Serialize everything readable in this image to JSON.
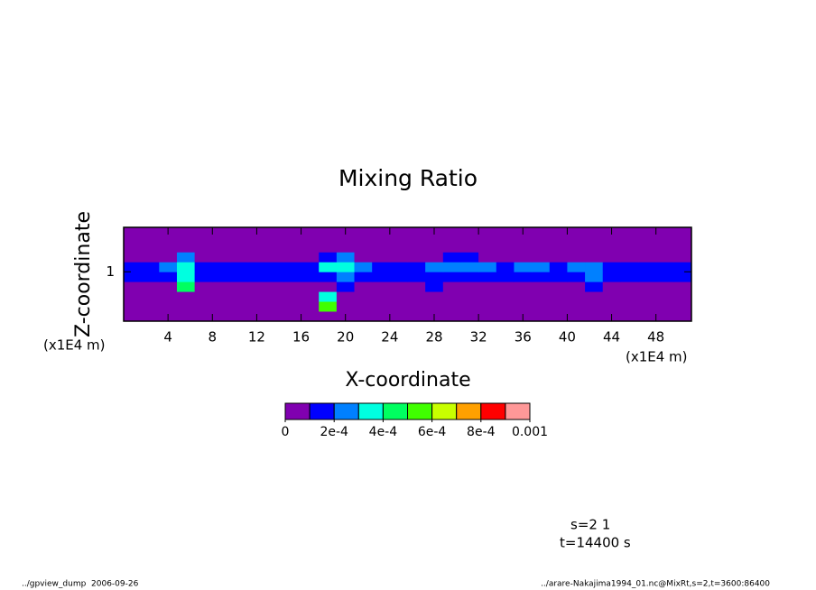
{
  "chart_data": {
    "type": "contour",
    "title": "Mixing Ratio",
    "x_label": "X-coordinate",
    "y_label": "Z-coordinate",
    "x_units": "(x1E4 m)",
    "y_units": "(x1E4 m)",
    "xlim": [
      0,
      51.2
    ],
    "ylim": [
      0,
      1.9
    ],
    "xticks": [
      4,
      8,
      12,
      16,
      20,
      24,
      28,
      32,
      36,
      40,
      44,
      48
    ],
    "yticks": [
      1
    ],
    "x": [
      0.8,
      2.4,
      4,
      5.6,
      7.2,
      8.8,
      10.4,
      12,
      13.6,
      15.2,
      16.8,
      18.4,
      20,
      21.6,
      23.2,
      24.8,
      26.4,
      28,
      29.6,
      31.2,
      32.8,
      34.4,
      36,
      37.6,
      39.2,
      40.8,
      42.4,
      44,
      45.6,
      47.2,
      48.8,
      50.4
    ],
    "y": [
      0.1,
      0.3,
      0.5,
      0.7,
      0.9,
      1.1,
      1.3,
      1.5,
      1.7
    ],
    "z": [
      [
        0,
        0,
        0,
        0,
        0,
        0,
        0,
        0,
        0,
        0,
        0,
        0,
        0,
        0,
        0,
        0,
        0,
        0,
        0,
        0,
        0,
        0,
        0,
        0,
        0,
        0,
        0,
        0,
        0,
        0,
        0,
        0
      ],
      [
        0,
        0,
        0,
        0,
        0,
        0,
        0,
        0,
        0,
        0,
        0,
        0.00055,
        0,
        0,
        0,
        0,
        0,
        0,
        0,
        0,
        0,
        0,
        0,
        0,
        0,
        0,
        0,
        0,
        0,
        0,
        0,
        0
      ],
      [
        0,
        0,
        0,
        0,
        0,
        0,
        0,
        0,
        0,
        0,
        0,
        0.00035,
        0,
        0,
        0,
        0,
        0,
        0,
        0,
        0,
        0,
        0,
        0,
        0,
        0,
        0,
        0,
        0,
        0,
        0,
        0,
        0
      ],
      [
        0,
        0,
        0,
        0.00045,
        0,
        0,
        0,
        0,
        0,
        0,
        0,
        0,
        0.00015,
        0,
        0,
        0,
        0,
        0.00015,
        0,
        0,
        0,
        0,
        0,
        0,
        0,
        0,
        0.00015,
        0,
        0,
        0,
        0,
        0
      ],
      [
        0.00015,
        0.00015,
        0.00015,
        0.00035,
        0.00015,
        0.00015,
        0.00015,
        0.00015,
        0.00015,
        0.00015,
        0.00015,
        0.00015,
        0.00025,
        0.00015,
        0.00015,
        0.00015,
        0.00015,
        0.00015,
        0.00015,
        0.00015,
        0.00015,
        0.00015,
        0.00015,
        0.00015,
        0.00015,
        0.00015,
        0.00025,
        0.00015,
        0.00015,
        0.00015,
        0.00015,
        0.00015
      ],
      [
        0.00015,
        0.00015,
        0.00025,
        0.00035,
        0.00015,
        0.00015,
        0.00015,
        0.00015,
        0.00015,
        0.00015,
        0.00015,
        0.00035,
        0.00035,
        0.00025,
        0.00015,
        0.00015,
        0.00015,
        0.00025,
        0.00025,
        0.00025,
        0.00025,
        0.00015,
        0.00025,
        0.00025,
        0.00015,
        0.00025,
        0.00025,
        0.00015,
        0.00015,
        0.00015,
        0.00015,
        0.00015
      ],
      [
        0,
        0,
        0,
        0.00025,
        0,
        0,
        0,
        0,
        0,
        0,
        0,
        0.00015,
        0.00025,
        0,
        0,
        0,
        0,
        0,
        0.00015,
        0.00015,
        0,
        0,
        0,
        0,
        0,
        0,
        0,
        0,
        0,
        0,
        0,
        0
      ],
      [
        0,
        0,
        0,
        0,
        0,
        0,
        0,
        0,
        0,
        0,
        0,
        0,
        0,
        0,
        0,
        0,
        0,
        0,
        0,
        0,
        0,
        0,
        0,
        0,
        0,
        0,
        0,
        0,
        0,
        0,
        0,
        0
      ],
      [
        0,
        0,
        0,
        0,
        0,
        0,
        0,
        0,
        0,
        0,
        0,
        0,
        0,
        0,
        0,
        0,
        0,
        0,
        0,
        0,
        0,
        0,
        0,
        0,
        0,
        0,
        0,
        0,
        0,
        0,
        0,
        0
      ]
    ],
    "colorbar": {
      "levels": [
        0,
        0.0001,
        0.0002,
        0.0003,
        0.0004,
        0.0005,
        0.0006,
        0.0007,
        0.0008,
        0.0009,
        0.001
      ],
      "colors": [
        "#8000b0",
        "#0000ff",
        "#0080ff",
        "#00ffe0",
        "#00ff60",
        "#40ff00",
        "#c8ff00",
        "#ffa000",
        "#ff0000",
        "#ff9898"
      ],
      "ticks": [
        0,
        {
          "value": 0.0002,
          "label": "2e-4"
        },
        {
          "value": 0.0004,
          "label": "4e-4"
        },
        {
          "value": 0.0006,
          "label": "6e-4"
        },
        {
          "value": 0.0008,
          "label": "8e-4"
        },
        0.001
      ]
    },
    "annotations": [
      "s=2 1",
      "t=14400 s"
    ],
    "footer_left": "../gpview_dump  2006-09-26",
    "footer_right": "../arare-Nakajima1994_01.nc@MixRt,s=2,t=3600:86400"
  }
}
